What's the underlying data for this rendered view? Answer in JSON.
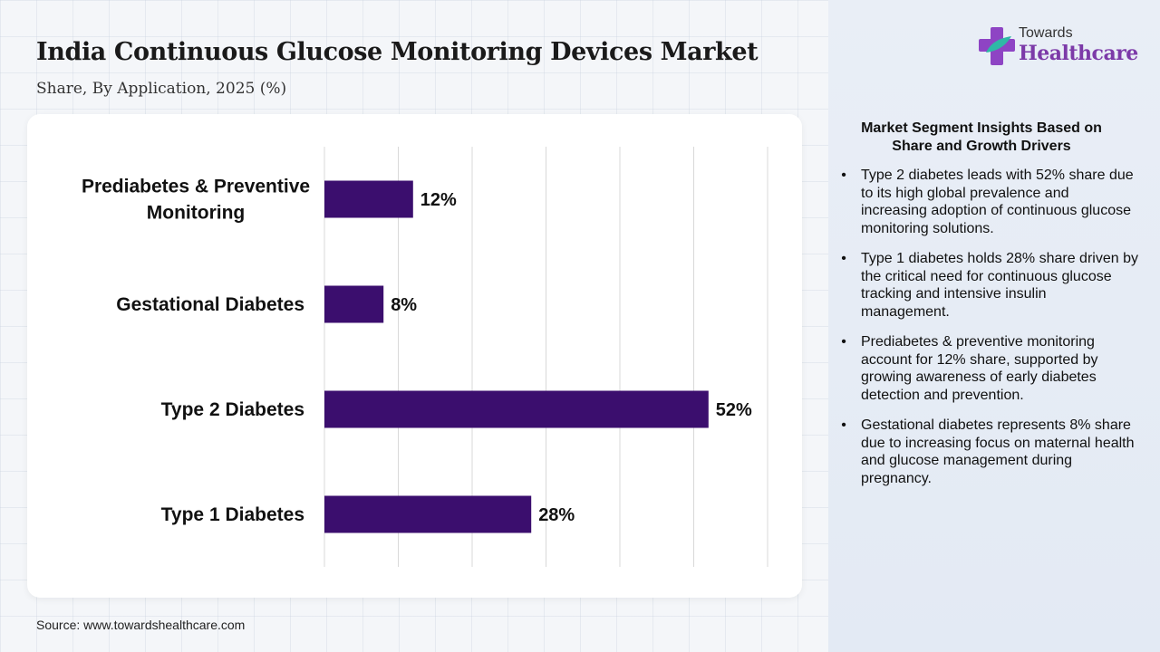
{
  "header": {
    "title": "India Continuous Glucose Monitoring Devices Market",
    "subtitle": "Share, By Application, 2025 (%)"
  },
  "logo": {
    "line1": "Towards",
    "line2": "Healthcare",
    "icon": "cross-logo-icon"
  },
  "chart_data": {
    "type": "bar",
    "orientation": "horizontal",
    "categories": [
      "Prediabetes & Preventive Monitoring",
      "Gestational Diabetes",
      "Type 2 Diabetes",
      "Type 1 Diabetes"
    ],
    "category_lines": [
      [
        "Prediabetes & Preventive",
        "Monitoring"
      ],
      [
        "Gestational Diabetes"
      ],
      [
        "Type 2 Diabetes"
      ],
      [
        "Type 1 Diabetes"
      ]
    ],
    "values": [
      12,
      8,
      52,
      28
    ],
    "data_labels": [
      "12%",
      "8%",
      "52%",
      "28%"
    ],
    "xlim": [
      0,
      60
    ],
    "grid": true,
    "bar_color": "#3b0e6e"
  },
  "insights": {
    "title": "Market Segment Insights Based on Share and Growth Drivers",
    "items": [
      "Type 2 diabetes leads with 52% share due to its high global prevalence and increasing adoption of continuous glucose monitoring solutions.",
      "Type 1 diabetes holds 28% share driven by the critical need for continuous glucose tracking and intensive insulin management.",
      "Prediabetes & preventive monitoring account for 12% share, supported by growing awareness of early diabetes detection and prevention.",
      "Gestational diabetes represents 8% share due to increasing focus on maternal health and glucose management during pregnancy."
    ]
  },
  "footer": {
    "source": "Source: www.towardshealthcare.com"
  }
}
